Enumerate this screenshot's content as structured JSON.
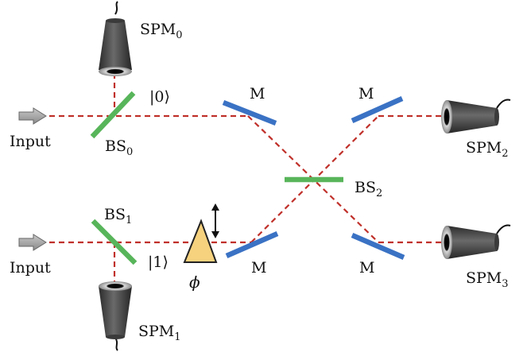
{
  "labels": {
    "input_top": "Input",
    "input_bottom": "Input",
    "mirror": "M",
    "phase": "ϕ",
    "state_0": "|0⟩",
    "state_1": "|1⟩",
    "bs0": {
      "base": "BS",
      "sub": "0"
    },
    "bs1": {
      "base": "BS",
      "sub": "1"
    },
    "bs2": {
      "base": "BS",
      "sub": "2"
    },
    "spm0": {
      "base": "SPM",
      "sub": "0"
    },
    "spm1": {
      "base": "SPM",
      "sub": "1"
    },
    "spm2": {
      "base": "SPM",
      "sub": "2"
    },
    "spm3": {
      "base": "SPM",
      "sub": "3"
    }
  },
  "colors": {
    "beam": "#c0302a",
    "mirror": "#3a72c4",
    "beam_splitter": "#58b55a",
    "phase_shifter": "#f6d27e",
    "detector": "#4a4a4a",
    "input_arrow": "#9a9a9a"
  }
}
